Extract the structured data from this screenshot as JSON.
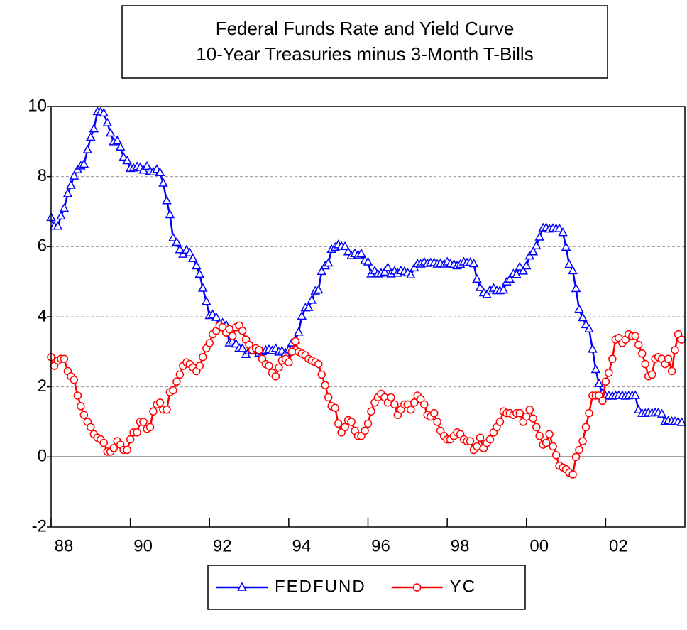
{
  "chart_data": {
    "type": "line",
    "title": "Federal Funds Rate and Yield Curve",
    "subtitle": "10-Year Treasuries minus 3-Month T-Bills",
    "x": [
      1988,
      1988.08,
      1988.17,
      1988.25,
      1988.33,
      1988.42,
      1988.5,
      1988.58,
      1988.67,
      1988.75,
      1988.83,
      1988.92,
      1989,
      1989.08,
      1989.17,
      1989.25,
      1989.33,
      1989.42,
      1989.5,
      1989.58,
      1989.67,
      1989.75,
      1989.83,
      1989.92,
      1990,
      1990.08,
      1990.17,
      1990.25,
      1990.33,
      1990.42,
      1990.5,
      1990.58,
      1990.67,
      1990.75,
      1990.83,
      1990.92,
      1991,
      1991.08,
      1991.17,
      1991.25,
      1991.33,
      1991.42,
      1991.5,
      1991.58,
      1991.67,
      1991.75,
      1991.83,
      1991.92,
      1992,
      1992.08,
      1992.17,
      1992.25,
      1992.33,
      1992.42,
      1992.5,
      1992.58,
      1992.67,
      1992.75,
      1992.83,
      1992.92,
      1993,
      1993.08,
      1993.17,
      1993.25,
      1993.33,
      1993.42,
      1993.5,
      1993.58,
      1993.67,
      1993.75,
      1993.83,
      1993.92,
      1994,
      1994.08,
      1994.17,
      1994.25,
      1994.33,
      1994.42,
      1994.5,
      1994.58,
      1994.67,
      1994.75,
      1994.83,
      1994.92,
      1995,
      1995.08,
      1995.17,
      1995.25,
      1995.33,
      1995.42,
      1995.5,
      1995.58,
      1995.67,
      1995.75,
      1995.83,
      1995.92,
      1996,
      1996.08,
      1996.17,
      1996.25,
      1996.33,
      1996.42,
      1996.5,
      1996.58,
      1996.67,
      1996.75,
      1996.83,
      1996.92,
      1997,
      1997.08,
      1997.17,
      1997.25,
      1997.33,
      1997.42,
      1997.5,
      1997.58,
      1997.67,
      1997.75,
      1997.83,
      1997.92,
      1998,
      1998.08,
      1998.17,
      1998.25,
      1998.33,
      1998.42,
      1998.5,
      1998.58,
      1998.67,
      1998.75,
      1998.83,
      1998.92,
      1999,
      1999.08,
      1999.17,
      1999.25,
      1999.33,
      1999.42,
      1999.5,
      1999.58,
      1999.67,
      1999.75,
      1999.83,
      1999.92,
      2000,
      2000.08,
      2000.17,
      2000.25,
      2000.33,
      2000.42,
      2000.5,
      2000.58,
      2000.67,
      2000.75,
      2000.83,
      2000.92,
      2001,
      2001.08,
      2001.17,
      2001.25,
      2001.33,
      2001.42,
      2001.5,
      2001.58,
      2001.67,
      2001.75,
      2001.83,
      2001.92,
      2002,
      2002.08,
      2002.17,
      2002.25,
      2002.33,
      2002.42,
      2002.5,
      2002.58,
      2002.67,
      2002.75,
      2002.83,
      2002.92,
      2003,
      2003.08,
      2003.17,
      2003.25,
      2003.33,
      2003.42,
      2003.5,
      2003.58,
      2003.67,
      2003.75,
      2003.83,
      2003.92
    ],
    "series": [
      {
        "name": "FEDFUND",
        "color": "#0000ff",
        "marker": "triangle",
        "values": [
          6.83,
          6.58,
          6.58,
          6.87,
          7.09,
          7.51,
          7.75,
          8.01,
          8.19,
          8.3,
          8.35,
          8.76,
          9.12,
          9.36,
          9.85,
          9.84,
          9.81,
          9.53,
          9.24,
          8.99,
          9.02,
          8.84,
          8.55,
          8.45,
          8.23,
          8.24,
          8.28,
          8.26,
          8.18,
          8.29,
          8.15,
          8.13,
          8.2,
          8.11,
          7.81,
          7.31,
          6.91,
          6.25,
          6.12,
          5.91,
          5.78,
          5.9,
          5.82,
          5.66,
          5.45,
          5.21,
          4.81,
          4.43,
          4.03,
          4.06,
          3.98,
          3.73,
          3.82,
          3.76,
          3.25,
          3.3,
          3.22,
          3.1,
          3.09,
          2.92,
          3.02,
          3.03,
          3.07,
          2.96,
          3.0,
          3.04,
          3.06,
          3.03,
          3.09,
          2.99,
          3.02,
          2.96,
          3.05,
          3.25,
          3.34,
          3.56,
          4.01,
          4.25,
          4.26,
          4.47,
          4.73,
          4.76,
          5.29,
          5.45,
          5.53,
          5.92,
          5.98,
          6.05,
          6.01,
          6.0,
          5.85,
          5.74,
          5.8,
          5.76,
          5.8,
          5.6,
          5.56,
          5.22,
          5.31,
          5.22,
          5.24,
          5.27,
          5.4,
          5.22,
          5.3,
          5.24,
          5.31,
          5.29,
          5.25,
          5.19,
          5.39,
          5.51,
          5.5,
          5.56,
          5.52,
          5.54,
          5.54,
          5.5,
          5.52,
          5.5,
          5.56,
          5.51,
          5.49,
          5.45,
          5.49,
          5.56,
          5.54,
          5.55,
          5.51,
          5.07,
          4.83,
          4.68,
          4.63,
          4.76,
          4.81,
          4.74,
          4.74,
          4.76,
          4.99,
          5.07,
          5.22,
          5.2,
          5.42,
          5.3,
          5.45,
          5.73,
          5.85,
          6.02,
          6.27,
          6.53,
          6.54,
          6.5,
          6.52,
          6.51,
          6.51,
          6.4,
          5.98,
          5.49,
          5.31,
          4.8,
          4.21,
          3.97,
          3.77,
          3.65,
          3.07,
          2.49,
          2.09,
          1.82,
          1.73,
          1.74,
          1.73,
          1.75,
          1.75,
          1.75,
          1.73,
          1.74,
          1.75,
          1.75,
          1.34,
          1.24,
          1.24,
          1.26,
          1.25,
          1.26,
          1.26,
          1.22,
          1.01,
          1.03,
          1.01,
          1.01,
          1.0,
          0.98
        ]
      },
      {
        "name": "YC",
        "color": "#ff0000",
        "marker": "circle",
        "values": [
          2.85,
          2.6,
          2.75,
          2.8,
          2.8,
          2.45,
          2.3,
          2.2,
          1.75,
          1.45,
          1.2,
          1.0,
          0.85,
          0.65,
          0.55,
          0.5,
          0.4,
          0.15,
          0.15,
          0.25,
          0.45,
          0.35,
          0.2,
          0.2,
          0.5,
          0.7,
          0.7,
          1.0,
          1.0,
          0.8,
          0.85,
          1.3,
          1.5,
          1.55,
          1.35,
          1.35,
          1.85,
          1.9,
          2.15,
          2.35,
          2.6,
          2.7,
          2.65,
          2.55,
          2.45,
          2.6,
          2.85,
          3.1,
          3.25,
          3.5,
          3.6,
          3.75,
          3.7,
          3.55,
          3.65,
          3.45,
          3.7,
          3.75,
          3.6,
          3.35,
          3.2,
          3.05,
          3.1,
          3.05,
          2.8,
          2.65,
          2.6,
          2.4,
          2.3,
          2.55,
          2.75,
          2.8,
          2.7,
          3.0,
          3.3,
          3.0,
          2.95,
          2.9,
          2.8,
          2.75,
          2.7,
          2.65,
          2.35,
          2.05,
          1.7,
          1.45,
          1.4,
          0.95,
          0.7,
          0.85,
          1.05,
          1.0,
          0.75,
          0.6,
          0.6,
          0.75,
          0.95,
          1.3,
          1.55,
          1.7,
          1.8,
          1.7,
          1.55,
          1.7,
          1.5,
          1.2,
          1.35,
          1.5,
          1.5,
          1.35,
          1.55,
          1.75,
          1.65,
          1.5,
          1.2,
          1.15,
          1.25,
          1.0,
          0.75,
          0.6,
          0.5,
          0.5,
          0.6,
          0.7,
          0.65,
          0.5,
          0.45,
          0.45,
          0.2,
          0.3,
          0.55,
          0.25,
          0.4,
          0.5,
          0.7,
          0.85,
          1.0,
          1.3,
          1.25,
          1.25,
          1.2,
          1.25,
          1.25,
          1.0,
          1.15,
          1.35,
          1.1,
          0.85,
          0.6,
          0.35,
          0.4,
          0.65,
          0.3,
          0.05,
          -0.25,
          -0.3,
          -0.35,
          -0.45,
          -0.5,
          0.0,
          0.2,
          0.45,
          0.85,
          1.25,
          1.75,
          1.75,
          1.75,
          1.6,
          2.15,
          2.4,
          2.8,
          3.35,
          3.4,
          3.25,
          3.35,
          3.5,
          3.45,
          3.45,
          3.2,
          2.95,
          2.65,
          2.3,
          2.35,
          2.8,
          2.85,
          2.8,
          2.65,
          2.8,
          2.45,
          3.05,
          3.5,
          3.35
        ]
      }
    ],
    "xlim": [
      1988,
      2004
    ],
    "xticks": [
      {
        "value": 1988,
        "label": "88"
      },
      {
        "value": 1990,
        "label": "90"
      },
      {
        "value": 1992,
        "label": "92"
      },
      {
        "value": 1994,
        "label": "94"
      },
      {
        "value": 1996,
        "label": "96"
      },
      {
        "value": 1998,
        "label": "98"
      },
      {
        "value": 2000,
        "label": "00"
      },
      {
        "value": 2002,
        "label": "02"
      }
    ],
    "ylim": [
      -2,
      10
    ],
    "yticks": [
      -2,
      0,
      2,
      4,
      6,
      8,
      10
    ],
    "grid": true,
    "legend": "bottom"
  }
}
